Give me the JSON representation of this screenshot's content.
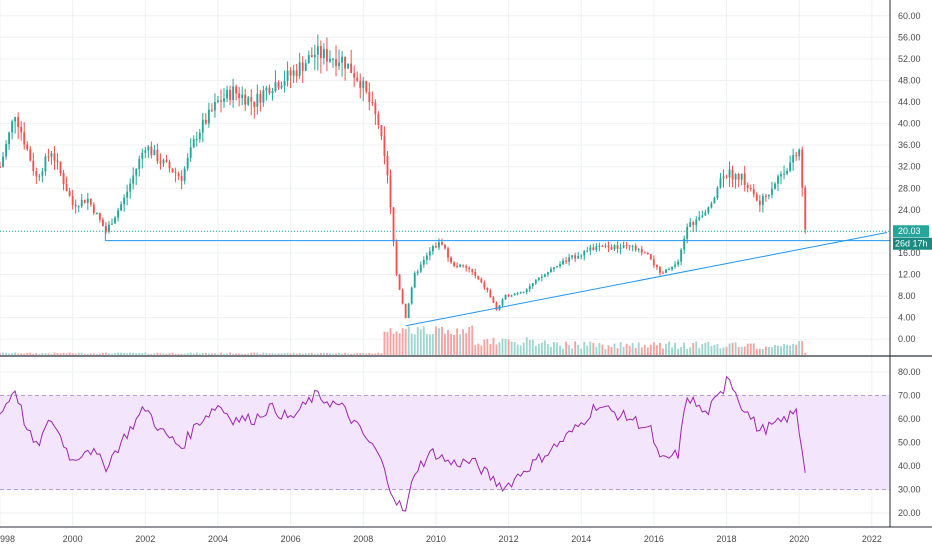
{
  "colors": {
    "up": "#26a69a",
    "down": "#ef5350",
    "vol_up": "#9fd6cf",
    "vol_down": "#f5a3a1",
    "rsi_line": "#9c27b0",
    "rsi_band": "#f3e5fb",
    "trendline": "#2196f3",
    "price_line": "#26a69a"
  },
  "price_label": "20.03",
  "countdown_label": "26d 17h",
  "chart_data": [
    {
      "type": "candlestick",
      "interval": "monthly",
      "x_range": [
        "1998-01",
        "2022-06"
      ],
      "ylim": [
        -2,
        62
      ],
      "y_ticks": [
        "0.00",
        "4.00",
        "8.00",
        "12.00",
        "16.00",
        "20.00",
        "24.00",
        "28.00",
        "32.00",
        "36.00",
        "40.00",
        "44.00",
        "48.00",
        "52.00",
        "56.00",
        "60.00"
      ],
      "x_tick_labels": [
        "998",
        "2000",
        "2002",
        "2004",
        "2006",
        "2008",
        "2010",
        "2012",
        "2014",
        "2016",
        "2018",
        "2020",
        "2022"
      ],
      "close_anchors": [
        [
          "1998-01",
          32
        ],
        [
          "1998-06",
          42
        ],
        [
          "1999-01",
          30
        ],
        [
          "1999-06",
          35
        ],
        [
          "2000-01",
          25
        ],
        [
          "2000-06",
          26
        ],
        [
          "2000-12",
          20
        ],
        [
          "2001-06",
          26
        ],
        [
          "2002-01",
          36
        ],
        [
          "2002-06",
          33
        ],
        [
          "2003-01",
          30
        ],
        [
          "2003-06",
          38
        ],
        [
          "2004-01",
          44
        ],
        [
          "2004-06",
          46
        ],
        [
          "2005-01",
          44
        ],
        [
          "2005-06",
          47
        ],
        [
          "2006-01",
          49
        ],
        [
          "2006-09",
          53
        ],
        [
          "2007-06",
          52
        ],
        [
          "2007-12",
          48
        ],
        [
          "2008-06",
          40
        ],
        [
          "2008-09",
          30
        ],
        [
          "2008-12",
          12
        ],
        [
          "2009-03",
          4
        ],
        [
          "2009-06",
          12
        ],
        [
          "2009-12",
          17
        ],
        [
          "2010-03",
          18
        ],
        [
          "2010-06",
          14
        ],
        [
          "2010-12",
          13
        ],
        [
          "2011-06",
          9
        ],
        [
          "2011-09",
          5.5
        ],
        [
          "2011-12",
          8
        ],
        [
          "2012-06",
          9
        ],
        [
          "2013-01",
          12
        ],
        [
          "2013-06",
          14
        ],
        [
          "2014-01",
          16
        ],
        [
          "2014-06",
          17
        ],
        [
          "2015-01",
          17
        ],
        [
          "2015-06",
          17
        ],
        [
          "2015-12",
          15
        ],
        [
          "2016-03",
          12
        ],
        [
          "2016-09",
          14
        ],
        [
          "2016-12",
          21
        ],
        [
          "2017-06",
          23
        ],
        [
          "2017-12",
          31
        ],
        [
          "2018-06",
          30
        ],
        [
          "2018-12",
          25
        ],
        [
          "2019-06",
          30
        ],
        [
          "2019-12",
          34
        ],
        [
          "2020-01",
          35
        ],
        [
          "2020-02",
          28
        ],
        [
          "2020-03",
          20
        ]
      ],
      "annotations": {
        "support_level": 18.3,
        "last_price_line": 20.03,
        "trendline": [
          [
            "2009-03",
            2.5
          ],
          [
            "2022-06",
            19.8
          ]
        ]
      }
    },
    {
      "type": "line",
      "name": "RSI",
      "ylim": [
        14,
        86
      ],
      "y_ticks": [
        "20.00",
        "30.00",
        "40.00",
        "50.00",
        "60.00",
        "70.00",
        "80.00"
      ],
      "band": [
        30,
        70
      ],
      "anchors": [
        [
          "1998-01",
          62
        ],
        [
          "1998-06",
          73
        ],
        [
          "1998-10",
          55
        ],
        [
          "1999-01",
          48
        ],
        [
          "1999-06",
          60
        ],
        [
          "2000-01",
          42
        ],
        [
          "2000-06",
          48
        ],
        [
          "2000-12",
          40
        ],
        [
          "2001-06",
          52
        ],
        [
          "2002-01",
          65
        ],
        [
          "2002-06",
          55
        ],
        [
          "2003-01",
          48
        ],
        [
          "2003-06",
          58
        ],
        [
          "2004-01",
          66
        ],
        [
          "2004-06",
          60
        ],
        [
          "2005-01",
          60
        ],
        [
          "2005-06",
          65
        ],
        [
          "2006-01",
          60
        ],
        [
          "2006-09",
          70
        ],
        [
          "2007-06",
          65
        ],
        [
          "2007-12",
          55
        ],
        [
          "2008-06",
          45
        ],
        [
          "2008-09",
          34
        ],
        [
          "2008-12",
          25
        ],
        [
          "2009-03",
          20
        ],
        [
          "2009-06",
          38
        ],
        [
          "2009-12",
          46
        ],
        [
          "2010-06",
          41
        ],
        [
          "2011-01",
          42
        ],
        [
          "2011-09",
          33
        ],
        [
          "2011-12",
          31
        ],
        [
          "2012-06",
          38
        ],
        [
          "2013-01",
          45
        ],
        [
          "2013-06",
          50
        ],
        [
          "2014-01",
          58
        ],
        [
          "2014-06",
          66
        ],
        [
          "2015-01",
          62
        ],
        [
          "2015-06",
          60
        ],
        [
          "2015-12",
          55
        ],
        [
          "2016-03",
          42
        ],
        [
          "2016-09",
          45
        ],
        [
          "2016-12",
          70
        ],
        [
          "2017-06",
          62
        ],
        [
          "2017-12",
          72
        ],
        [
          "2018-01",
          80
        ],
        [
          "2018-06",
          66
        ],
        [
          "2018-12",
          55
        ],
        [
          "2019-06",
          58
        ],
        [
          "2019-12",
          63
        ],
        [
          "2020-02",
          47
        ],
        [
          "2020-03",
          38
        ]
      ]
    }
  ]
}
